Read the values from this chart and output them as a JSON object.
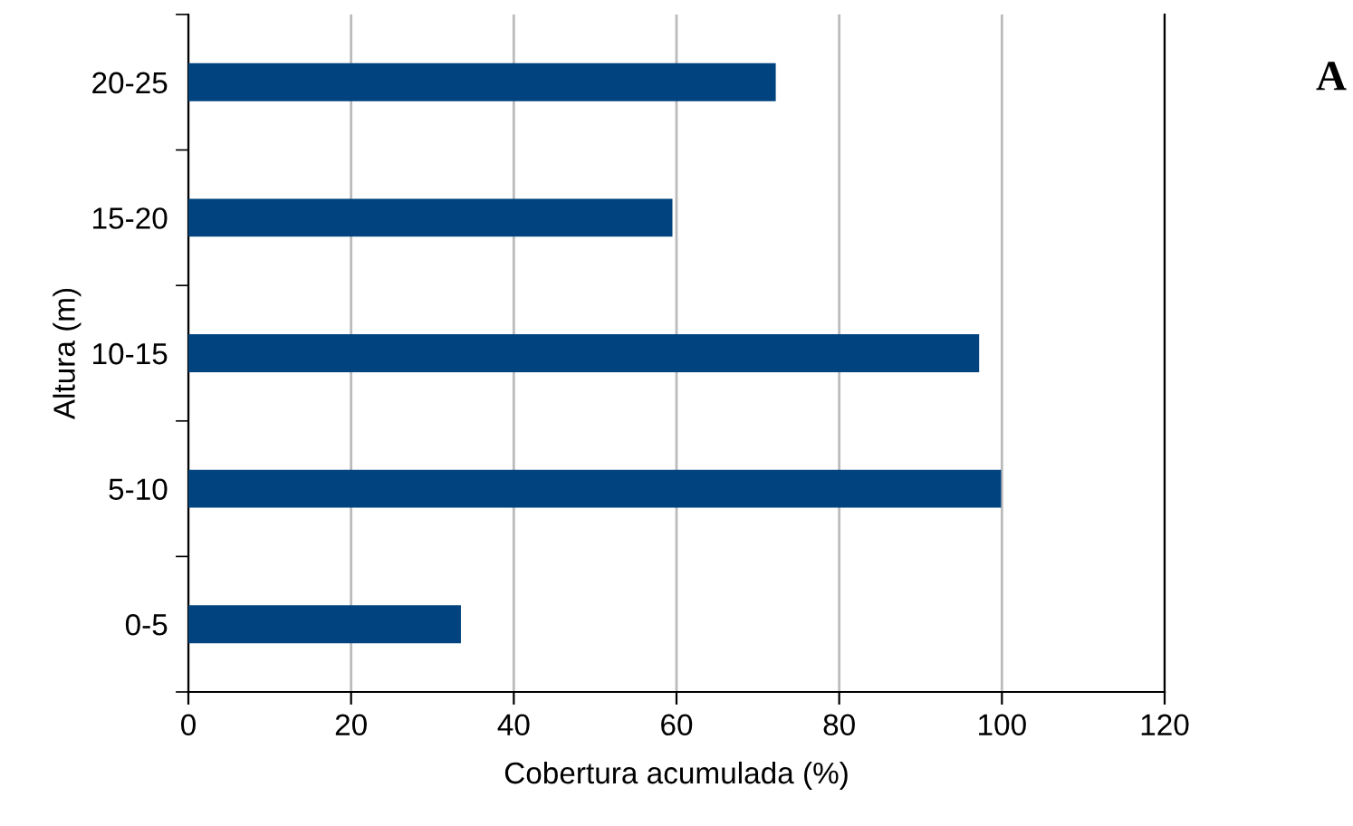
{
  "chart_data": {
    "type": "bar",
    "orientation": "horizontal",
    "xlabel": "Cobertura acumulada (%)",
    "ylabel": "Altura (m)",
    "categories": [
      "20-25",
      "15-20",
      "10-15",
      "5-10",
      "0-5"
    ],
    "values": [
      72.2,
      59.5,
      97.2,
      99.9,
      33.5
    ],
    "color": "#00437f",
    "xlim": [
      0,
      120
    ],
    "xticks": [
      0,
      20,
      40,
      60,
      80,
      100,
      120
    ],
    "grid": "x",
    "annotations": [
      "A"
    ]
  }
}
